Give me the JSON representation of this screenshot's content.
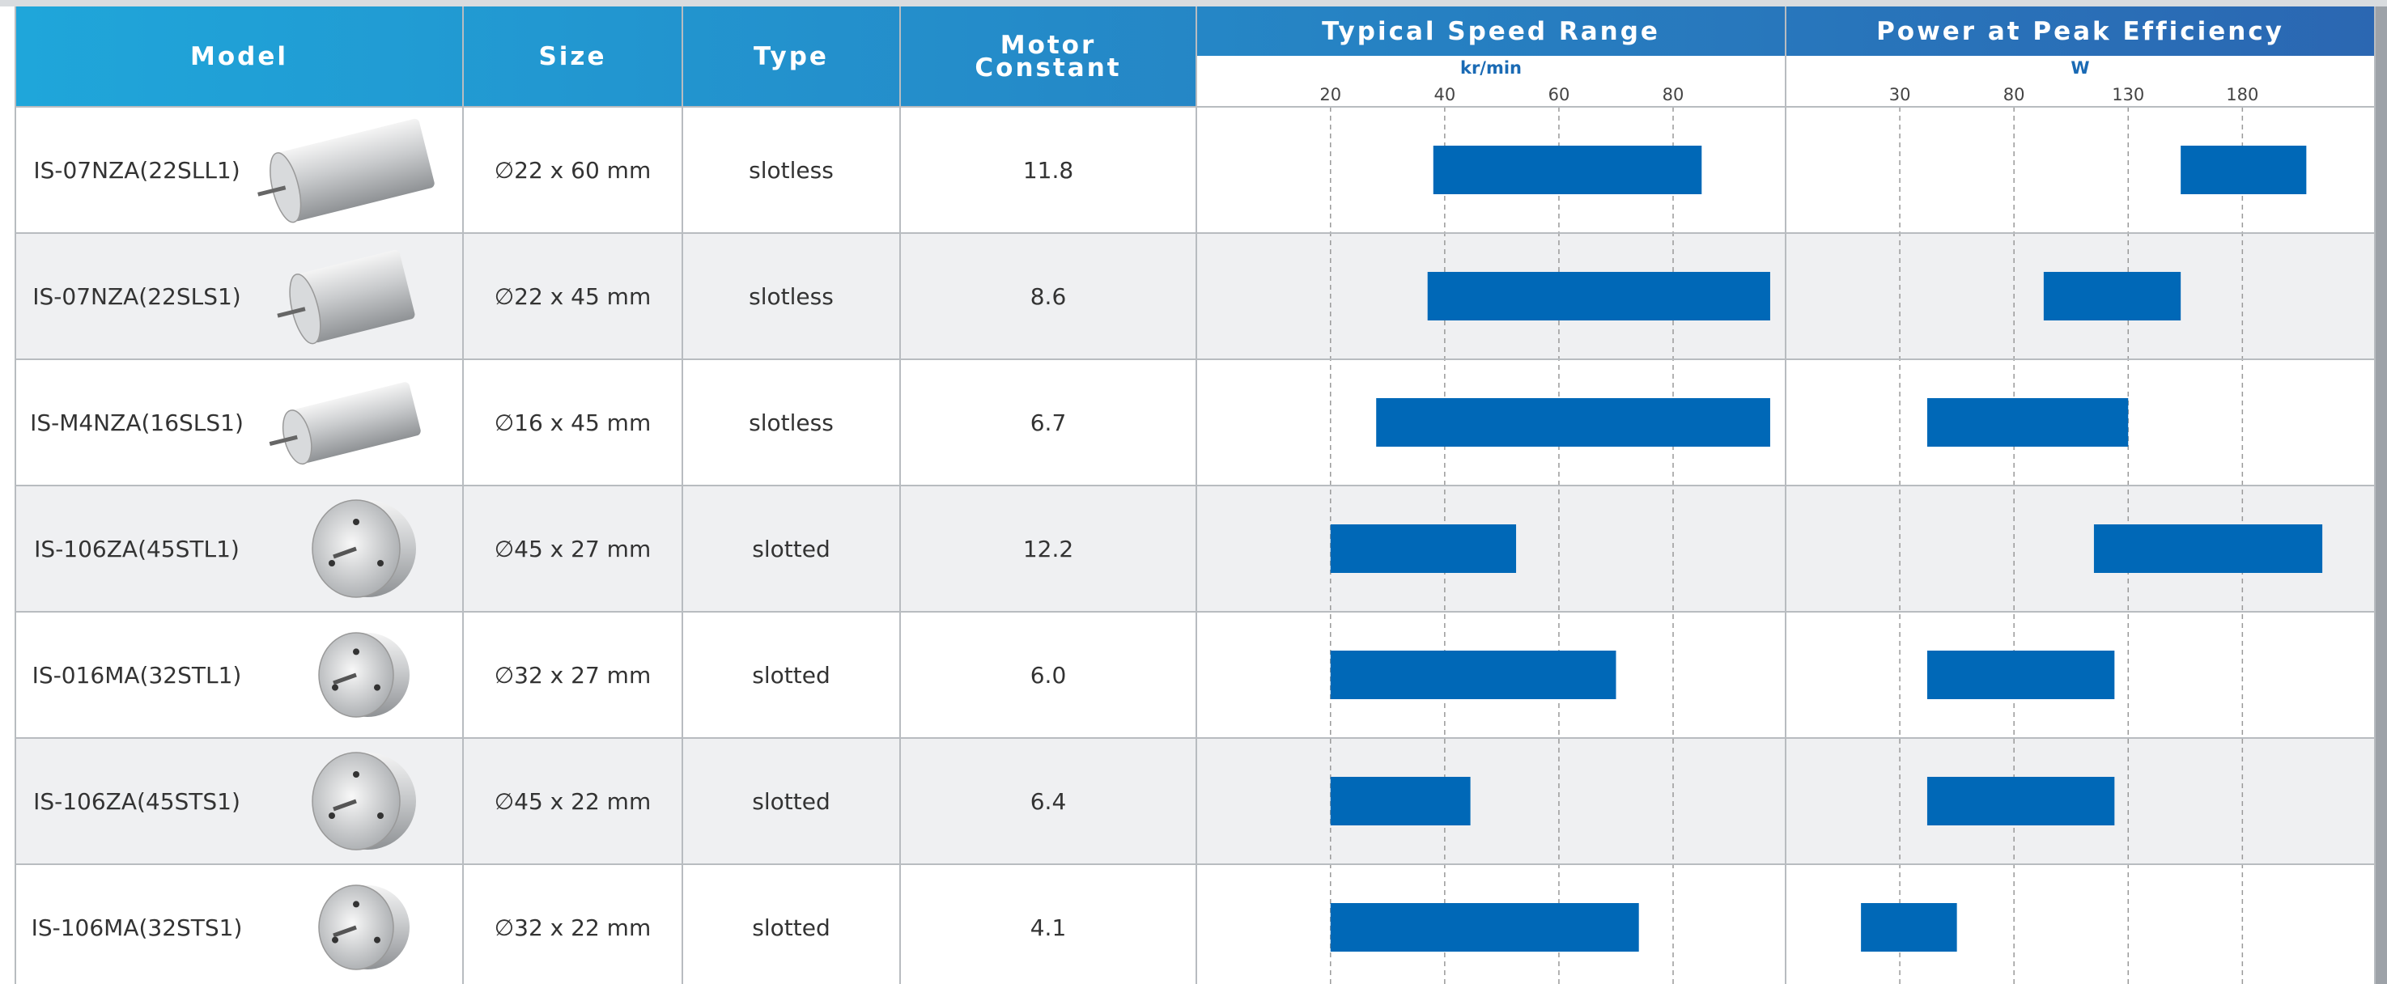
{
  "table": {
    "headers": [
      "Model",
      "Size",
      "Type",
      "Motor Constant"
    ],
    "rows": [
      [
        "IS-07NZA(22SLL1)",
        "∅22 x 60 mm",
        "slotless",
        "11.8"
      ],
      [
        "IS-07NZA(22SLS1)",
        "∅22 x 45 mm",
        "slotless",
        "8.6"
      ],
      [
        "IS-M4NZA(16SLS1)",
        "∅16 x 45 mm",
        "slotless",
        "6.7"
      ],
      [
        "IS-106ZA(45STL1)",
        "∅45 x 27 mm",
        "slotted",
        "12.2"
      ],
      [
        "IS-016MA(32STL1)",
        "∅32 x 27 mm",
        "slotted",
        "6.0"
      ],
      [
        "IS-106ZA(45STS1)",
        "∅45 x 22 mm",
        "slotted",
        "6.4"
      ],
      [
        "IS-106MA(32STS1)",
        "∅32 x 22 mm",
        "slotted",
        "4.1"
      ]
    ]
  },
  "chart_data": [
    {
      "type": "range-bar",
      "title": "Typical Speed Range",
      "x_label": "kr/min",
      "color": "#0068b7",
      "xlim": [
        -3.5,
        99.7
      ],
      "xticks": [
        20,
        40,
        60,
        80
      ],
      "grid": true,
      "low": [
        38,
        37,
        28,
        20,
        20,
        20,
        20
      ],
      "high": [
        85,
        97,
        97,
        52.5,
        70,
        44.5,
        74
      ]
    },
    {
      "type": "range-bar",
      "title": "Power at Peak Efficiency",
      "x_label": "W",
      "color": "#0068b7",
      "xlim": [
        -20,
        238
      ],
      "xticks": [
        30,
        80,
        130,
        180
      ],
      "grid": true,
      "low": [
        153,
        93,
        42,
        115,
        42,
        42,
        13
      ],
      "high": [
        208,
        153,
        130,
        215,
        124,
        124,
        55
      ]
    }
  ]
}
